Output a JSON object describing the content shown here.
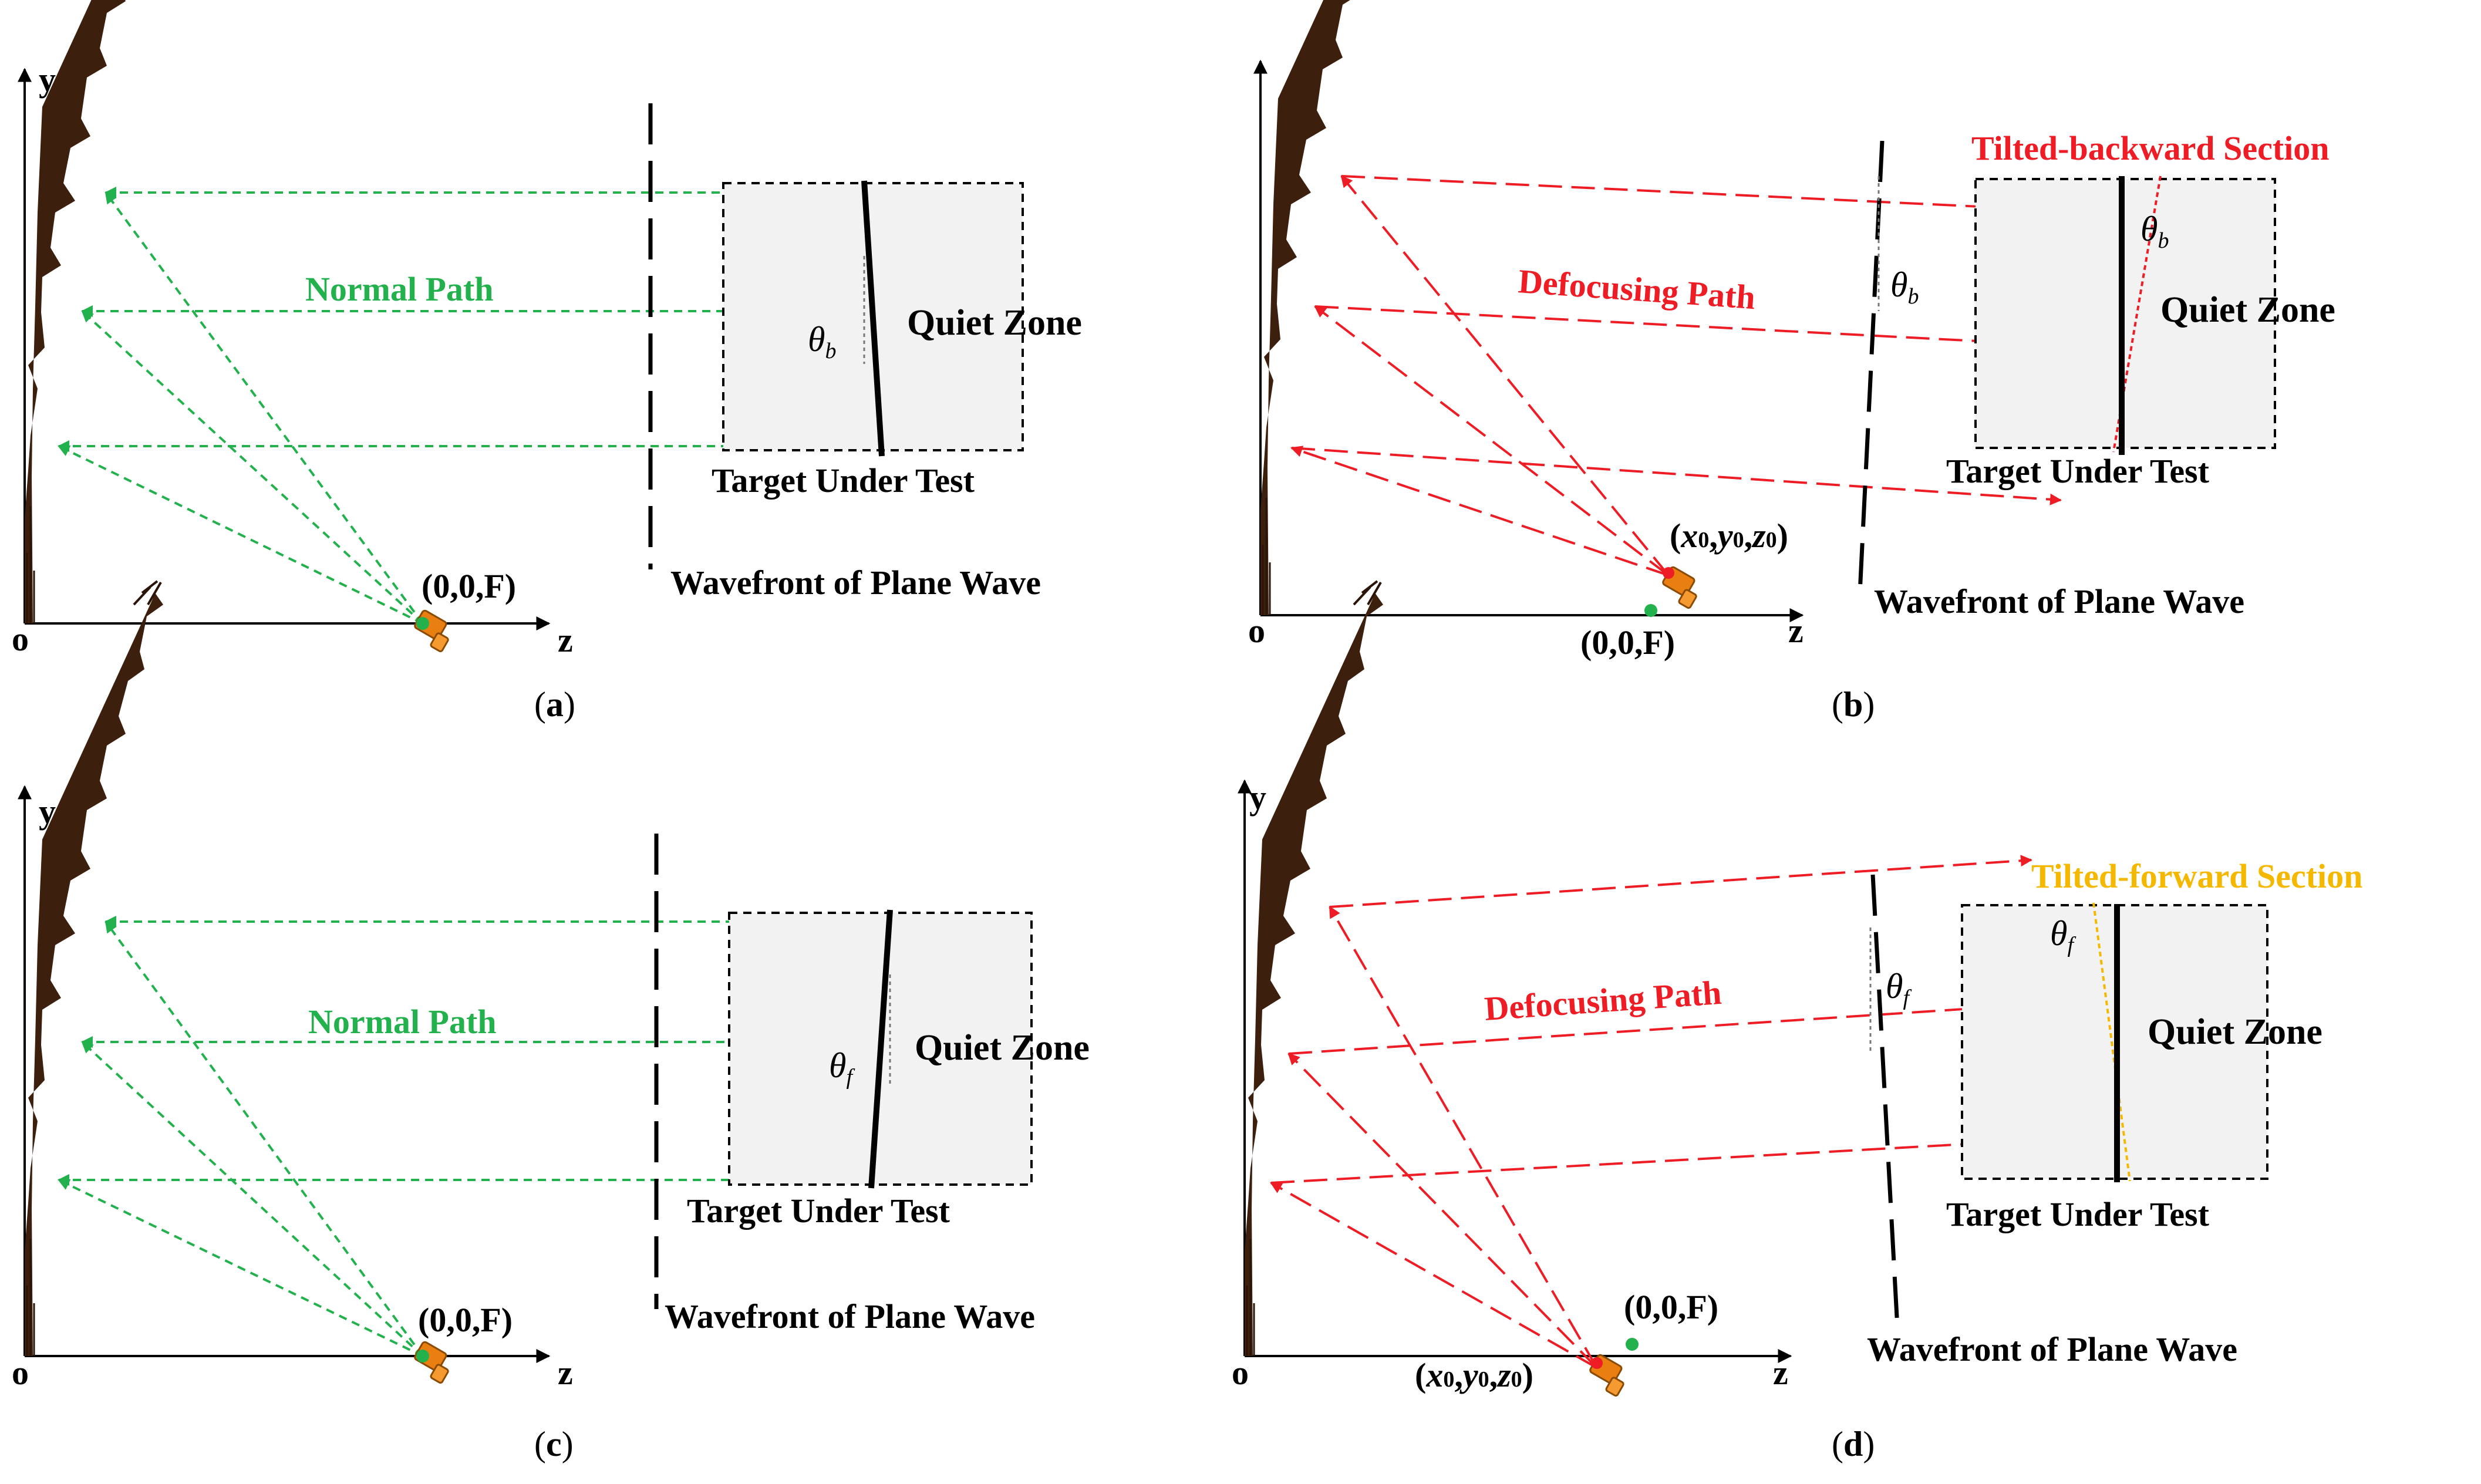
{
  "axes": {
    "y": "y",
    "z": "z",
    "origin": "o"
  },
  "focus_label": "(0,0,F)",
  "offset_focus": {
    "open": "(",
    "x": "x",
    "x_sub": "0",
    "comma1": ",",
    "y": "y",
    "y_sub": "0",
    "comma2": ",",
    "z": "z",
    "z_sub": "0",
    "close": ")"
  },
  "target_label": "Target Under Test",
  "wavefront_label": "Wavefront of Plane Wave",
  "quiet_zone": "Quiet Zone",
  "theta": "θ",
  "theta_b": "b",
  "theta_f": "f",
  "panels": {
    "a": {
      "path": "Normal Path",
      "caption": {
        "open": "(",
        "letter": "a",
        "close": ")"
      }
    },
    "b": {
      "path": "Defocusing Path",
      "section": "Tilted-backward Section",
      "caption": {
        "open": "(",
        "letter": "b",
        "close": ")"
      }
    },
    "c": {
      "path": "Normal Path",
      "caption": {
        "open": "(",
        "letter": "c",
        "close": ")"
      }
    },
    "d": {
      "path": "Defocusing Path",
      "section": "Tilted-forward Section",
      "caption": {
        "open": "(",
        "letter": "d",
        "close": ")"
      }
    }
  },
  "colors": {
    "normal": "#22b14c",
    "defocus": "#ee1c24",
    "backward": "#ee1c24",
    "forward": "#f5b800",
    "reflector": "#3d1f0d",
    "feed": "#e87f10",
    "zone_fill": "#f2f2f2"
  }
}
